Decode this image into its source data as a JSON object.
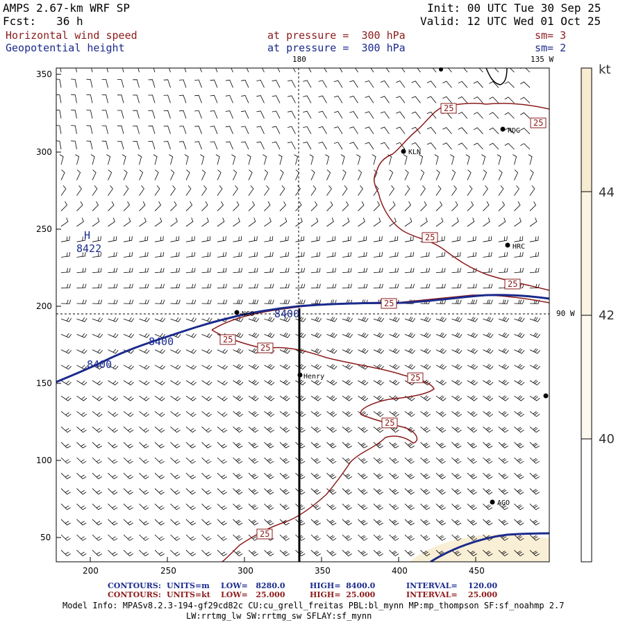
{
  "header": {
    "model": "AMPS 2.67-km WRF SP",
    "fcst": "Fcst:   36 h",
    "init": "Init: 00 UTC Tue 30 Sep 25",
    "valid": "Valid: 12 UTC Wed 01 Oct 25",
    "field1": "Horizontal wind speed",
    "field1_level": "at pressure =  300 hPa",
    "field1_sm": "sm= 3",
    "field2": "Geopotential height",
    "field2_level": "at pressure =  300 hPa",
    "field2_sm": "sm= 2"
  },
  "map": {
    "lon_label_top": "180",
    "lon_label_top_right": "135 W",
    "lon_label_right": "90 W",
    "x_ticks": [
      "200",
      "250",
      "300",
      "350",
      "400",
      "450"
    ],
    "y_ticks": [
      "350",
      "300",
      "250",
      "200",
      "150",
      "100",
      "50"
    ],
    "high_symbol": "H",
    "high_value": "8422",
    "height_labels": [
      "8400",
      "8400",
      "8400"
    ],
    "speed_labels": [
      "25",
      "25",
      "25",
      "25",
      "25",
      "25",
      "25",
      "25",
      "25"
    ],
    "stations": [
      "RDG",
      "KLN",
      "HRC",
      "NCO",
      "Henry",
      "AGO"
    ]
  },
  "colorbar": {
    "unit": "kt",
    "ticks": [
      "44",
      "42",
      "40"
    ],
    "colors": [
      "#f7ecd0",
      "#fbf4e2",
      "#ffffff"
    ]
  },
  "footer": {
    "row1_label": "CONTOURS:",
    "row1_units": "UNITS=m",
    "row1_low": "LOW=   8280.0",
    "row1_high": "HIGH=  8400.0",
    "row1_interval": "INTERVAL=    120.00",
    "row2_label": "CONTOURS:",
    "row2_units": "UNITS=kt",
    "row2_low": "LOW=   25.000",
    "row2_high": "HIGH=  25.000",
    "row2_interval": "INTERVAL=    25.000",
    "model_info": "Model Info: MPASv8.2.3-194-gf29cd82c CU:cu_grell_freitas PBL:bl_mynn MP:mp_thompson SF:sf_noahmp 2.7",
    "model_info2": "LW:rrtmg_lw SW:rrtmg_sw SFLAY:sf_mynn"
  },
  "colors": {
    "height": "#1a2a8c",
    "speed": "#8b1a1a",
    "barb": "#000000"
  }
}
